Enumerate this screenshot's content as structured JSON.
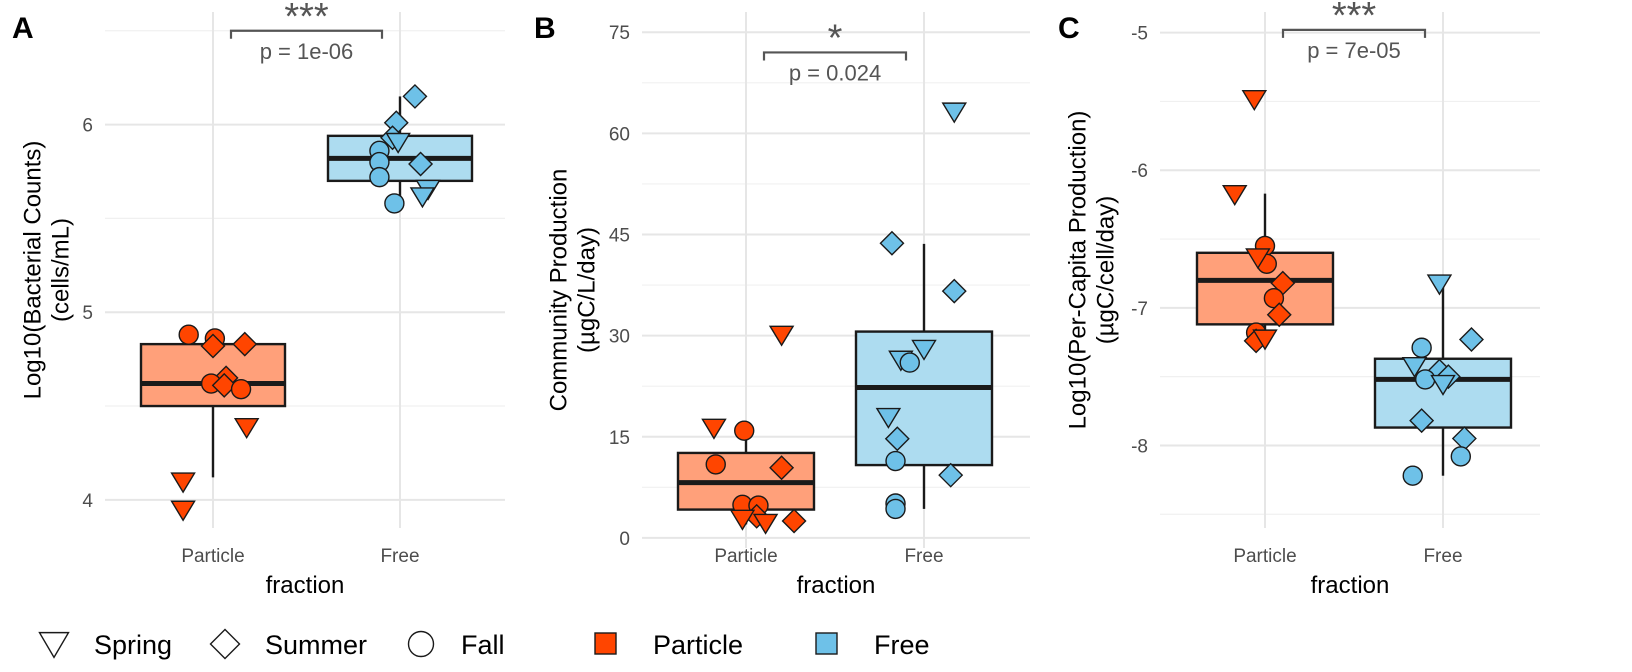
{
  "colors": {
    "Particle": "#FF4500",
    "Free": "#6EC1E8",
    "ParticleBox": "#FFA07A",
    "FreeBox": "#ADDCF0"
  },
  "legend": {
    "shapes": [
      {
        "label": "Spring",
        "shape": "triangle-down"
      },
      {
        "label": "Summer",
        "shape": "diamond"
      },
      {
        "label": "Fall",
        "shape": "circle"
      }
    ],
    "fills": [
      {
        "label": "Particle"
      },
      {
        "label": "Free"
      }
    ]
  },
  "chart_data": [
    {
      "type": "boxplot",
      "panel": "A",
      "xlabel": "fraction",
      "ylabel": [
        "Log10(Bacterial Counts)",
        "(cells/mL)"
      ],
      "categories": [
        "Particle",
        "Free"
      ],
      "ylim": [
        3.85,
        6.6
      ],
      "yticks": [
        4,
        5,
        6
      ],
      "boxes": [
        {
          "category": "Particle",
          "q1": 4.5,
          "median": 4.62,
          "q3": 4.83,
          "whisker_low": 4.12,
          "whisker_high": 4.88
        },
        {
          "category": "Free",
          "q1": 5.7,
          "median": 5.82,
          "q3": 5.94,
          "whisker_low": 5.6,
          "whisker_high": 6.15
        }
      ],
      "points": [
        {
          "category": "Particle",
          "x": 0.87,
          "y": 4.88,
          "shape": "circle"
        },
        {
          "category": "Particle",
          "x": 1.01,
          "y": 4.86,
          "shape": "circle"
        },
        {
          "category": "Particle",
          "x": 1.0,
          "y": 4.82,
          "shape": "diamond"
        },
        {
          "category": "Particle",
          "x": 1.17,
          "y": 4.83,
          "shape": "diamond"
        },
        {
          "category": "Particle",
          "x": 1.07,
          "y": 4.65,
          "shape": "diamond"
        },
        {
          "category": "Particle",
          "x": 0.99,
          "y": 4.62,
          "shape": "circle"
        },
        {
          "category": "Particle",
          "x": 1.06,
          "y": 4.61,
          "shape": "diamond"
        },
        {
          "category": "Particle",
          "x": 1.15,
          "y": 4.59,
          "shape": "circle"
        },
        {
          "category": "Particle",
          "x": 1.18,
          "y": 4.39,
          "shape": "triangle-down"
        },
        {
          "category": "Particle",
          "x": 0.84,
          "y": 4.1,
          "shape": "triangle-down"
        },
        {
          "category": "Particle",
          "x": 0.84,
          "y": 3.95,
          "shape": "triangle-down"
        },
        {
          "category": "Free",
          "x": 2.08,
          "y": 6.15,
          "shape": "diamond"
        },
        {
          "category": "Free",
          "x": 1.98,
          "y": 6.01,
          "shape": "diamond"
        },
        {
          "category": "Free",
          "x": 1.96,
          "y": 5.93,
          "shape": "diamond"
        },
        {
          "category": "Free",
          "x": 1.99,
          "y": 5.91,
          "shape": "triangle-down"
        },
        {
          "category": "Free",
          "x": 1.89,
          "y": 5.86,
          "shape": "circle"
        },
        {
          "category": "Free",
          "x": 1.89,
          "y": 5.8,
          "shape": "circle"
        },
        {
          "category": "Free",
          "x": 2.11,
          "y": 5.79,
          "shape": "diamond"
        },
        {
          "category": "Free",
          "x": 1.89,
          "y": 5.72,
          "shape": "circle"
        },
        {
          "category": "Free",
          "x": 2.15,
          "y": 5.66,
          "shape": "triangle-down"
        },
        {
          "category": "Free",
          "x": 2.12,
          "y": 5.62,
          "shape": "triangle-down"
        },
        {
          "category": "Free",
          "x": 1.97,
          "y": 5.58,
          "shape": "circle"
        }
      ],
      "significance": {
        "stars": "***",
        "p_label": "p = 1e-06",
        "y_bracket": 6.5
      }
    },
    {
      "type": "boxplot",
      "panel": "B",
      "xlabel": "fraction",
      "ylabel": [
        "Community Production",
        "(µgC/L/day)"
      ],
      "categories": [
        "Particle",
        "Free"
      ],
      "ylim": [
        -1.5,
        78
      ],
      "yticks": [
        0,
        15,
        30,
        45,
        60,
        75
      ],
      "boxes": [
        {
          "category": "Particle",
          "q1": 4.2,
          "median": 8.2,
          "q3": 12.6,
          "whisker_low": 2.0,
          "whisker_high": 16.8
        },
        {
          "category": "Free",
          "q1": 10.8,
          "median": 22.3,
          "q3": 30.6,
          "whisker_low": 4.3,
          "whisker_high": 43.6
        }
      ],
      "points": [
        {
          "category": "Particle",
          "x": 1.2,
          "y": 30.2,
          "shape": "triangle-down"
        },
        {
          "category": "Particle",
          "x": 0.82,
          "y": 16.4,
          "shape": "triangle-down"
        },
        {
          "category": "Particle",
          "x": 0.99,
          "y": 15.9,
          "shape": "circle"
        },
        {
          "category": "Particle",
          "x": 0.83,
          "y": 10.9,
          "shape": "circle"
        },
        {
          "category": "Particle",
          "x": 1.2,
          "y": 10.4,
          "shape": "diamond"
        },
        {
          "category": "Particle",
          "x": 0.98,
          "y": 4.9,
          "shape": "circle"
        },
        {
          "category": "Particle",
          "x": 1.07,
          "y": 4.8,
          "shape": "circle"
        },
        {
          "category": "Particle",
          "x": 1.06,
          "y": 3.2,
          "shape": "diamond"
        },
        {
          "category": "Particle",
          "x": 0.98,
          "y": 2.9,
          "shape": "triangle-down"
        },
        {
          "category": "Particle",
          "x": 1.11,
          "y": 2.3,
          "shape": "triangle-down"
        },
        {
          "category": "Particle",
          "x": 1.27,
          "y": 2.5,
          "shape": "diamond"
        },
        {
          "category": "Free",
          "x": 2.17,
          "y": 63.3,
          "shape": "triangle-down"
        },
        {
          "category": "Free",
          "x": 1.82,
          "y": 43.7,
          "shape": "diamond"
        },
        {
          "category": "Free",
          "x": 2.17,
          "y": 36.6,
          "shape": "diamond"
        },
        {
          "category": "Free",
          "x": 2.0,
          "y": 28.1,
          "shape": "triangle-down"
        },
        {
          "category": "Free",
          "x": 1.87,
          "y": 26.5,
          "shape": "triangle-down"
        },
        {
          "category": "Free",
          "x": 1.92,
          "y": 26.0,
          "shape": "circle"
        },
        {
          "category": "Free",
          "x": 1.8,
          "y": 18.0,
          "shape": "triangle-down"
        },
        {
          "category": "Free",
          "x": 1.85,
          "y": 14.7,
          "shape": "diamond"
        },
        {
          "category": "Free",
          "x": 1.84,
          "y": 11.4,
          "shape": "circle"
        },
        {
          "category": "Free",
          "x": 2.15,
          "y": 9.3,
          "shape": "diamond"
        },
        {
          "category": "Free",
          "x": 1.84,
          "y": 5.1,
          "shape": "circle"
        },
        {
          "category": "Free",
          "x": 1.84,
          "y": 4.3,
          "shape": "circle"
        }
      ],
      "significance": {
        "stars": "*",
        "p_label": "p = 0.024",
        "y_bracket": 72
      }
    },
    {
      "type": "boxplot",
      "panel": "C",
      "xlabel": "fraction",
      "ylabel": [
        "Log10(Per-Capita Production)",
        "(µgC/cell/day)"
      ],
      "categories": [
        "Particle",
        "Free"
      ],
      "ylim": [
        -8.6,
        -4.85
      ],
      "yticks": [
        -8,
        -7,
        -6,
        -5
      ],
      "boxes": [
        {
          "category": "Particle",
          "q1": -7.12,
          "median": -6.8,
          "q3": -6.6,
          "whisker_low": -7.24,
          "whisker_high": -6.17
        },
        {
          "category": "Free",
          "q1": -7.87,
          "median": -7.52,
          "q3": -7.37,
          "whisker_low": -8.22,
          "whisker_high": -6.82
        }
      ],
      "points": [
        {
          "category": "Particle",
          "x": 0.94,
          "y": -5.48,
          "shape": "triangle-down"
        },
        {
          "category": "Particle",
          "x": 0.83,
          "y": -6.17,
          "shape": "triangle-down"
        },
        {
          "category": "Particle",
          "x": 1.0,
          "y": -6.55,
          "shape": "circle"
        },
        {
          "category": "Particle",
          "x": 1.01,
          "y": -6.68,
          "shape": "circle"
        },
        {
          "category": "Particle",
          "x": 0.96,
          "y": -6.63,
          "shape": "triangle-down"
        },
        {
          "category": "Particle",
          "x": 1.1,
          "y": -6.82,
          "shape": "diamond"
        },
        {
          "category": "Particle",
          "x": 1.05,
          "y": -6.93,
          "shape": "circle"
        },
        {
          "category": "Particle",
          "x": 1.08,
          "y": -7.05,
          "shape": "diamond"
        },
        {
          "category": "Particle",
          "x": 0.95,
          "y": -7.18,
          "shape": "circle"
        },
        {
          "category": "Particle",
          "x": 0.95,
          "y": -7.24,
          "shape": "diamond"
        },
        {
          "category": "Particle",
          "x": 1.0,
          "y": -7.22,
          "shape": "triangle-down"
        },
        {
          "category": "Free",
          "x": 1.98,
          "y": -6.82,
          "shape": "triangle-down"
        },
        {
          "category": "Free",
          "x": 1.88,
          "y": -7.29,
          "shape": "circle"
        },
        {
          "category": "Free",
          "x": 2.16,
          "y": -7.23,
          "shape": "diamond"
        },
        {
          "category": "Free",
          "x": 1.84,
          "y": -7.42,
          "shape": "triangle-down"
        },
        {
          "category": "Free",
          "x": 1.98,
          "y": -7.46,
          "shape": "diamond"
        },
        {
          "category": "Free",
          "x": 1.9,
          "y": -7.52,
          "shape": "circle"
        },
        {
          "category": "Free",
          "x": 2.03,
          "y": -7.5,
          "shape": "diamond"
        },
        {
          "category": "Free",
          "x": 2.0,
          "y": -7.55,
          "shape": "triangle-down"
        },
        {
          "category": "Free",
          "x": 1.88,
          "y": -7.82,
          "shape": "diamond"
        },
        {
          "category": "Free",
          "x": 2.12,
          "y": -7.95,
          "shape": "diamond"
        },
        {
          "category": "Free",
          "x": 2.1,
          "y": -8.08,
          "shape": "circle"
        },
        {
          "category": "Free",
          "x": 1.83,
          "y": -8.22,
          "shape": "circle"
        }
      ],
      "significance": {
        "stars": "***",
        "p_label": "p = 7e-05",
        "y_bracket": -4.98
      }
    }
  ]
}
